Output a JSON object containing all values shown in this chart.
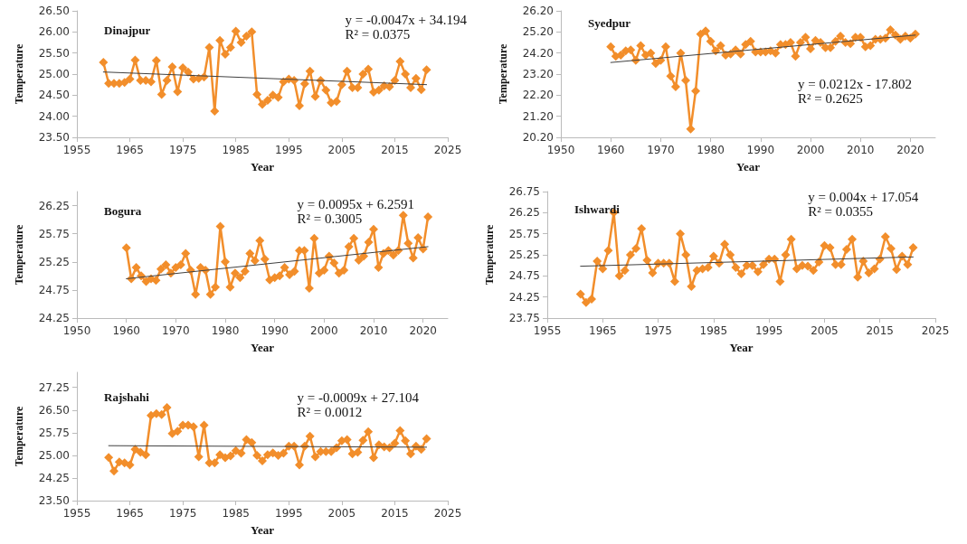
{
  "chart_data": [
    {
      "type": "line",
      "title": "Dinajpur",
      "xlabel": "Year",
      "ylabel": "Temperature",
      "annotations": [
        "y = -0.0047x + 34.194",
        "R² = 0.0375"
      ],
      "xlim": [
        1955,
        2025
      ],
      "xticks": [
        1955,
        1965,
        1975,
        1985,
        1995,
        2005,
        2015,
        2025
      ],
      "ylim": [
        23.5,
        26.5
      ],
      "yticks": [
        {
          "value": 23.5,
          "label": "23.50"
        },
        {
          "value": 24,
          "label": "24.00"
        },
        {
          "value": 24.5,
          "label": "24.50"
        },
        {
          "value": 25,
          "label": "25.00"
        },
        {
          "value": 25.5,
          "label": "25.50"
        },
        {
          "value": 26,
          "label": "26.00"
        },
        {
          "value": 26.5,
          "label": "26.50"
        }
      ],
      "grid": false,
      "marker": "diamond",
      "series": [
        {
          "color": "#f28e2b",
          "x": [
            1960,
            1961,
            1962,
            1963,
            1964,
            1965,
            1966,
            1967,
            1968,
            1969,
            1970,
            1971,
            1972,
            1973,
            1974,
            1975,
            1976,
            1977,
            1978,
            1979,
            1980,
            1981,
            1982,
            1983,
            1984,
            1985,
            1986,
            1987,
            1988,
            1989,
            1990,
            1991,
            1992,
            1993,
            1994,
            1995,
            1996,
            1997,
            1998,
            1999,
            2000,
            2001,
            2002,
            2003,
            2004,
            2005,
            2006,
            2007,
            2008,
            2009,
            2010,
            2011,
            2012,
            2013,
            2014,
            2015,
            2016,
            2017,
            2018,
            2019,
            2020,
            2021
          ],
          "values": [
            25.28,
            24.78,
            24.78,
            24.78,
            24.8,
            24.88,
            25.33,
            24.85,
            24.85,
            24.82,
            25.32,
            24.52,
            24.85,
            25.17,
            24.58,
            25.15,
            25.05,
            24.88,
            24.9,
            24.93,
            25.63,
            24.12,
            25.8,
            25.47,
            25.63,
            26.02,
            25.75,
            25.9,
            26.0,
            24.52,
            24.28,
            24.38,
            24.5,
            24.45,
            24.82,
            24.88,
            24.85,
            24.25,
            24.77,
            25.07,
            24.47,
            24.85,
            24.62,
            24.32,
            24.35,
            24.75,
            25.07,
            24.68,
            24.68,
            25.0,
            25.12,
            24.57,
            24.62,
            24.72,
            24.7,
            24.85,
            25.3,
            25.0,
            24.68,
            24.9,
            24.63,
            25.1
          ]
        },
        {
          "type": "line",
          "color": "#404040",
          "marker": "none",
          "x": [
            1960,
            2021
          ],
          "values": [
            25.05,
            24.75
          ]
        }
      ]
    },
    {
      "type": "line",
      "title": "Syedpur",
      "xlabel": "Year",
      "ylabel": "Temperature",
      "annotations": [
        "y = 0.0212x - 17.802",
        "R² = 0.2625"
      ],
      "xlim": [
        1950,
        2025
      ],
      "xticks": [
        1950,
        1960,
        1970,
        1980,
        1990,
        2000,
        2010,
        2020
      ],
      "ylim": [
        20.2,
        26.2
      ],
      "yticks": [
        {
          "value": 20.2,
          "label": "20.20"
        },
        {
          "value": 21.2,
          "label": "21.20"
        },
        {
          "value": 22.2,
          "label": "22.20"
        },
        {
          "value": 23.2,
          "label": "23.20"
        },
        {
          "value": 24.2,
          "label": "24.20"
        },
        {
          "value": 25.2,
          "label": "25.20"
        },
        {
          "value": 26.2,
          "label": "26.20"
        }
      ],
      "grid": false,
      "marker": "diamond",
      "series": [
        {
          "color": "#f28e2b",
          "x": [
            1960,
            1961,
            1962,
            1963,
            1964,
            1965,
            1966,
            1967,
            1968,
            1969,
            1970,
            1971,
            1972,
            1973,
            1974,
            1975,
            1976,
            1977,
            1978,
            1979,
            1980,
            1981,
            1982,
            1983,
            1984,
            1985,
            1986,
            1987,
            1988,
            1989,
            1990,
            1991,
            1992,
            1993,
            1994,
            1995,
            1996,
            1997,
            1998,
            1999,
            2000,
            2001,
            2002,
            2003,
            2004,
            2005,
            2006,
            2007,
            2008,
            2009,
            2010,
            2011,
            2012,
            2013,
            2014,
            2015,
            2016,
            2017,
            2018,
            2019,
            2020,
            2021
          ],
          "values": [
            24.5,
            24.05,
            24.1,
            24.3,
            24.35,
            23.85,
            24.55,
            24.1,
            24.2,
            23.7,
            23.85,
            24.5,
            23.1,
            22.6,
            24.2,
            22.9,
            20.6,
            22.4,
            25.1,
            25.25,
            24.75,
            24.3,
            24.55,
            24.1,
            24.15,
            24.35,
            24.15,
            24.6,
            24.75,
            24.25,
            24.25,
            24.25,
            24.3,
            24.2,
            24.6,
            24.6,
            24.7,
            24.05,
            24.7,
            24.95,
            24.4,
            24.8,
            24.7,
            24.45,
            24.45,
            24.75,
            25.0,
            24.7,
            24.65,
            24.95,
            24.95,
            24.5,
            24.55,
            24.85,
            24.85,
            24.9,
            25.3,
            25.05,
            24.85,
            25.0,
            24.9,
            25.1
          ]
        },
        {
          "type": "line",
          "color": "#404040",
          "marker": "none",
          "x": [
            1960,
            2021
          ],
          "values": [
            23.75,
            25.05
          ]
        }
      ]
    },
    {
      "type": "line",
      "title": "Bogura",
      "xlabel": "Year",
      "ylabel": "Temperature",
      "annotations": [
        "y = 0.0095x + 6.2591",
        "R² = 0.3005"
      ],
      "xlim": [
        1950,
        2025
      ],
      "xticks": [
        1950,
        1960,
        1970,
        1980,
        1990,
        2000,
        2010,
        2020
      ],
      "ylim": [
        24.25,
        26.5
      ],
      "yticks": [
        {
          "value": 24.25,
          "label": "24.25"
        },
        {
          "value": 24.75,
          "label": "24.75"
        },
        {
          "value": 25.25,
          "label": "25.25"
        },
        {
          "value": 25.75,
          "label": "25.75"
        },
        {
          "value": 26.25,
          "label": "26.25"
        }
      ],
      "grid": false,
      "marker": "diamond",
      "series": [
        {
          "color": "#f28e2b",
          "x": [
            1960,
            1961,
            1962,
            1963,
            1964,
            1965,
            1966,
            1967,
            1968,
            1969,
            1970,
            1971,
            1972,
            1973,
            1974,
            1975,
            1976,
            1977,
            1978,
            1979,
            1980,
            1981,
            1982,
            1983,
            1984,
            1985,
            1986,
            1987,
            1988,
            1989,
            1990,
            1991,
            1992,
            1993,
            1994,
            1995,
            1996,
            1997,
            1998,
            1999,
            2000,
            2001,
            2002,
            2003,
            2004,
            2005,
            2006,
            2007,
            2008,
            2009,
            2010,
            2011,
            2012,
            2013,
            2014,
            2015,
            2016,
            2017,
            2018,
            2019,
            2020,
            2021
          ],
          "values": [
            25.5,
            24.95,
            25.15,
            25.0,
            24.9,
            24.95,
            24.92,
            25.12,
            25.2,
            25.05,
            25.15,
            25.2,
            25.4,
            25.1,
            24.67,
            25.15,
            25.1,
            24.67,
            24.8,
            25.88,
            25.25,
            24.8,
            25.05,
            24.97,
            25.08,
            25.4,
            25.27,
            25.63,
            25.3,
            24.93,
            24.97,
            25.0,
            25.15,
            25.02,
            25.08,
            25.45,
            25.45,
            24.78,
            25.67,
            25.05,
            25.1,
            25.35,
            25.23,
            25.05,
            25.1,
            25.52,
            25.67,
            25.28,
            25.35,
            25.6,
            25.83,
            25.15,
            25.4,
            25.45,
            25.37,
            25.45,
            26.08,
            25.58,
            25.32,
            25.68,
            25.48,
            26.05
          ]
        },
        {
          "type": "line",
          "color": "#404040",
          "marker": "none",
          "x": [
            1960,
            2021
          ],
          "values": [
            24.95,
            25.52
          ]
        }
      ]
    },
    {
      "type": "line",
      "title": "Ishwardi",
      "xlabel": "Year",
      "ylabel": "Temperature",
      "annotations": [
        "y = 0.004x + 17.054",
        "R² = 0.0355"
      ],
      "xlim": [
        1955,
        2025
      ],
      "xticks": [
        1955,
        1965,
        1975,
        1985,
        1995,
        2005,
        2015,
        2025
      ],
      "ylim": [
        23.75,
        26.75
      ],
      "yticks": [
        {
          "value": 23.75,
          "label": "23.75"
        },
        {
          "value": 24.25,
          "label": "24.25"
        },
        {
          "value": 24.75,
          "label": "24.75"
        },
        {
          "value": 25.25,
          "label": "25.25"
        },
        {
          "value": 25.75,
          "label": "25.75"
        },
        {
          "value": 26.25,
          "label": "26.25"
        },
        {
          "value": 26.75,
          "label": "26.75"
        }
      ],
      "grid": false,
      "marker": "diamond",
      "series": [
        {
          "color": "#f28e2b",
          "x": [
            1961,
            1962,
            1963,
            1964,
            1965,
            1966,
            1967,
            1968,
            1969,
            1970,
            1971,
            1972,
            1973,
            1974,
            1975,
            1976,
            1977,
            1978,
            1979,
            1980,
            1981,
            1982,
            1983,
            1984,
            1985,
            1986,
            1987,
            1988,
            1989,
            1990,
            1991,
            1992,
            1993,
            1994,
            1995,
            1996,
            1997,
            1998,
            1999,
            2000,
            2001,
            2002,
            2003,
            2004,
            2005,
            2006,
            2007,
            2008,
            2009,
            2010,
            2011,
            2012,
            2013,
            2014,
            2015,
            2016,
            2017,
            2018,
            2019,
            2020,
            2021
          ],
          "values": [
            24.32,
            24.12,
            24.2,
            25.1,
            24.92,
            25.35,
            26.25,
            24.75,
            24.88,
            25.25,
            25.4,
            25.87,
            25.12,
            24.82,
            25.05,
            25.05,
            25.05,
            24.62,
            25.75,
            25.25,
            24.5,
            24.88,
            24.92,
            24.95,
            25.22,
            25.05,
            25.5,
            25.25,
            24.95,
            24.8,
            25.0,
            25.0,
            24.85,
            25.02,
            25.15,
            25.15,
            24.62,
            25.25,
            25.62,
            24.92,
            25.0,
            24.98,
            24.88,
            25.08,
            25.47,
            25.42,
            25.02,
            25.02,
            25.38,
            25.62,
            24.72,
            25.1,
            24.82,
            24.92,
            25.15,
            25.68,
            25.4,
            24.9,
            25.22,
            25.02,
            25.42
          ]
        },
        {
          "type": "line",
          "color": "#404040",
          "marker": "none",
          "x": [
            1961,
            2021
          ],
          "values": [
            24.98,
            25.2
          ]
        }
      ]
    },
    {
      "type": "line",
      "title": "Rajshahi",
      "xlabel": "Year",
      "ylabel": "Temperature",
      "annotations": [
        "y = -0.0009x + 27.104",
        "R² = 0.0012"
      ],
      "xlim": [
        1955,
        2025
      ],
      "xticks": [
        1955,
        1965,
        1975,
        1985,
        1995,
        2005,
        2015,
        2025
      ],
      "ylim": [
        23.5,
        27.75
      ],
      "yticks": [
        {
          "value": 23.5,
          "label": "23.50"
        },
        {
          "value": 24.25,
          "label": "24.25"
        },
        {
          "value": 25,
          "label": "25.00"
        },
        {
          "value": 25.75,
          "label": "25.75"
        },
        {
          "value": 26.5,
          "label": "26.50"
        },
        {
          "value": 27.25,
          "label": "27.25"
        }
      ],
      "grid": false,
      "marker": "diamond",
      "series": [
        {
          "color": "#f28e2b",
          "x": [
            1961,
            1962,
            1963,
            1964,
            1965,
            1966,
            1967,
            1968,
            1969,
            1970,
            1971,
            1972,
            1973,
            1974,
            1975,
            1976,
            1977,
            1978,
            1979,
            1980,
            1981,
            1982,
            1983,
            1984,
            1985,
            1986,
            1987,
            1988,
            1989,
            1990,
            1991,
            1992,
            1993,
            1994,
            1995,
            1996,
            1997,
            1998,
            1999,
            2000,
            2001,
            2002,
            2003,
            2004,
            2005,
            2006,
            2007,
            2008,
            2009,
            2010,
            2011,
            2012,
            2013,
            2014,
            2015,
            2016,
            2017,
            2018,
            2019,
            2020,
            2021
          ],
          "values": [
            24.93,
            24.48,
            24.78,
            24.75,
            24.68,
            25.2,
            25.1,
            25.02,
            26.32,
            26.38,
            26.35,
            26.58,
            25.72,
            25.8,
            26.0,
            26.0,
            25.95,
            24.95,
            26.0,
            24.75,
            24.75,
            25.02,
            24.92,
            24.98,
            25.15,
            25.07,
            25.52,
            25.42,
            25.0,
            24.82,
            25.02,
            25.08,
            25.0,
            25.07,
            25.3,
            25.3,
            24.68,
            25.3,
            25.63,
            24.95,
            25.12,
            25.12,
            25.12,
            25.25,
            25.48,
            25.52,
            25.05,
            25.1,
            25.5,
            25.78,
            24.92,
            25.35,
            25.28,
            25.25,
            25.4,
            25.82,
            25.48,
            25.05,
            25.3,
            25.2,
            25.55
          ]
        },
        {
          "type": "line",
          "color": "#404040",
          "marker": "none",
          "x": [
            1961,
            2021
          ],
          "values": [
            25.32,
            25.27
          ]
        }
      ]
    }
  ]
}
